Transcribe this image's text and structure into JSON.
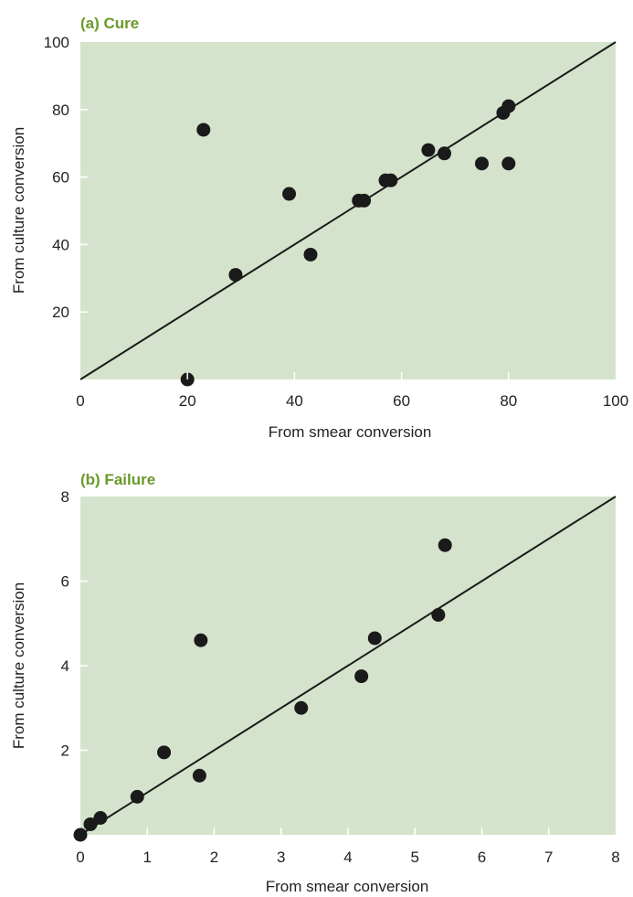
{
  "colors": {
    "plot_background": "#d5e3cc",
    "title_color": "#6a9a2a",
    "point_color": "#1a1a1a",
    "line_color": "#1a1a1a"
  },
  "chart_data": [
    {
      "type": "scatter",
      "title": "(a) Cure",
      "xlabel": "From smear conversion",
      "ylabel": "From culture conversion",
      "xlim": [
        0,
        100
      ],
      "ylim": [
        0,
        100
      ],
      "x_ticks": [
        "0",
        "20",
        "40",
        "60",
        "80",
        "100"
      ],
      "y_ticks": [
        "20",
        "40",
        "60",
        "80",
        "100"
      ],
      "x_tick_values": [
        0,
        20,
        40,
        60,
        80,
        100
      ],
      "y_tick_values": [
        20,
        40,
        60,
        80,
        100
      ],
      "reference_line": [
        [
          0,
          0
        ],
        [
          100,
          100
        ]
      ],
      "points": [
        {
          "x": 20,
          "y": 0
        },
        {
          "x": 23,
          "y": 74
        },
        {
          "x": 29,
          "y": 31
        },
        {
          "x": 39,
          "y": 55
        },
        {
          "x": 43,
          "y": 37
        },
        {
          "x": 52,
          "y": 53
        },
        {
          "x": 53,
          "y": 53
        },
        {
          "x": 57,
          "y": 59
        },
        {
          "x": 58,
          "y": 59
        },
        {
          "x": 65,
          "y": 68
        },
        {
          "x": 68,
          "y": 67
        },
        {
          "x": 75,
          "y": 64
        },
        {
          "x": 79,
          "y": 79
        },
        {
          "x": 80,
          "y": 81
        },
        {
          "x": 80,
          "y": 64
        }
      ]
    },
    {
      "type": "scatter",
      "title": "(b) Failure",
      "xlabel": "From smear conversion",
      "ylabel": "From culture conversion",
      "xlim": [
        0,
        8
      ],
      "ylim": [
        0,
        8
      ],
      "x_ticks": [
        "0",
        "1",
        "2",
        "3",
        "4",
        "5",
        "6",
        "7",
        "8"
      ],
      "y_ticks": [
        "2",
        "4",
        "6",
        "8"
      ],
      "x_tick_values": [
        0,
        1,
        2,
        3,
        4,
        5,
        6,
        7,
        8
      ],
      "y_tick_values": [
        2,
        4,
        6,
        8
      ],
      "reference_line": [
        [
          0,
          0
        ],
        [
          8,
          8
        ]
      ],
      "points": [
        {
          "x": 0,
          "y": 0
        },
        {
          "x": 0.15,
          "y": 0.25
        },
        {
          "x": 0.3,
          "y": 0.4
        },
        {
          "x": 0.85,
          "y": 0.9
        },
        {
          "x": 1.25,
          "y": 1.95
        },
        {
          "x": 1.78,
          "y": 1.4
        },
        {
          "x": 1.8,
          "y": 4.6
        },
        {
          "x": 3.3,
          "y": 3.0
        },
        {
          "x": 4.2,
          "y": 3.75
        },
        {
          "x": 4.4,
          "y": 4.65
        },
        {
          "x": 5.35,
          "y": 5.2
        },
        {
          "x": 5.45,
          "y": 6.85
        }
      ]
    }
  ]
}
